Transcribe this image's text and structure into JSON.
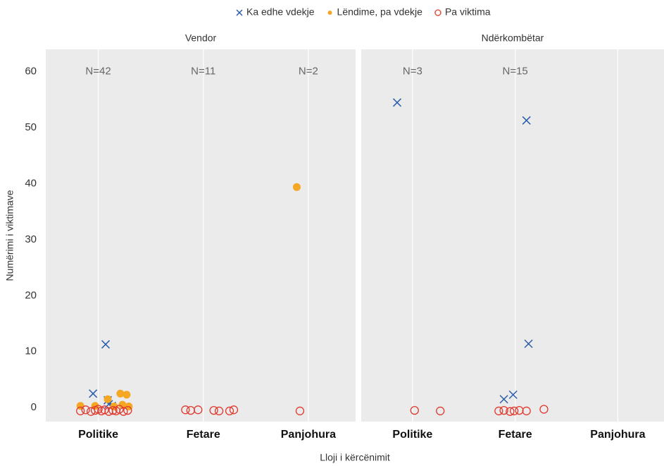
{
  "chart_data": {
    "type": "scatter",
    "xlabel": "Lloji i kërcënimit",
    "ylabel": "Numërimi i viktimave",
    "legend": "top",
    "grid": "x",
    "ylim": [
      -2.5,
      64
    ],
    "yticks": [
      0,
      10,
      20,
      30,
      40,
      50,
      60
    ],
    "xlim": [
      0.5,
      3.45
    ],
    "xticks": [
      {
        "value": 1,
        "label": "Politike"
      },
      {
        "value": 2,
        "label": "Fetare"
      },
      {
        "value": 3,
        "label": "Panjohura"
      }
    ],
    "series": [
      {
        "name": "Ka edhe vdekje",
        "color": "#2a5caa",
        "marker": "x"
      },
      {
        "name": "Lëndime, pa vdekje",
        "color": "#f5a623",
        "marker": "dot"
      },
      {
        "name": "Pa viktima",
        "color": "#e03a2f",
        "marker": "circle"
      }
    ],
    "facets": [
      {
        "title": "Vendor",
        "annotations": [
          {
            "x": 1,
            "text": "N=42"
          },
          {
            "x": 2,
            "text": "N=11"
          },
          {
            "x": 3,
            "text": "N=2"
          }
        ],
        "series": [
          {
            "x": [
              0.95,
              1.07,
              1.1,
              1.13,
              1.09
            ],
            "values": [
              2.5,
              11.3,
              0.6,
              0.3,
              1.3
            ]
          },
          {
            "x": [
              0.83,
              0.97,
              1.09,
              1.21,
              1.27,
              1.23,
              1.29,
              1.15,
              2.89
            ],
            "values": [
              0.3,
              0.3,
              1.5,
              2.5,
              2.3,
              0.5,
              0.2,
              0.2,
              39.4
            ]
          },
          {
            "x": [
              0.83,
              0.88,
              0.93,
              0.97,
              1.0,
              1.03,
              1.06,
              1.1,
              1.14,
              1.17,
              1.2,
              1.24,
              1.28,
              1.83,
              1.88,
              1.95,
              2.1,
              2.15,
              2.25,
              2.29,
              2.92
            ],
            "values": [
              -0.6,
              -0.4,
              -0.7,
              -0.5,
              -0.3,
              -0.6,
              -0.4,
              -0.7,
              -0.5,
              -0.6,
              -0.3,
              -0.7,
              -0.5,
              -0.4,
              -0.5,
              -0.4,
              -0.5,
              -0.6,
              -0.6,
              -0.4,
              -0.6
            ]
          }
        ]
      },
      {
        "title": "Ndërkombëtar",
        "annotations": [
          {
            "x": 1,
            "text": "N=3"
          },
          {
            "x": 2,
            "text": "N=15"
          }
        ],
        "series": [
          {
            "x": [
              0.85,
              2.11,
              2.13,
              1.89,
              1.98
            ],
            "values": [
              54.5,
              51.3,
              11.4,
              1.5,
              2.3
            ]
          },
          {
            "x": [],
            "values": []
          },
          {
            "x": [
              1.02,
              1.27,
              1.84,
              1.89,
              1.95,
              1.99,
              2.04,
              2.11,
              2.28
            ],
            "values": [
              -0.5,
              -0.6,
              -0.6,
              -0.5,
              -0.7,
              -0.6,
              -0.5,
              -0.6,
              -0.3
            ]
          }
        ]
      }
    ]
  }
}
